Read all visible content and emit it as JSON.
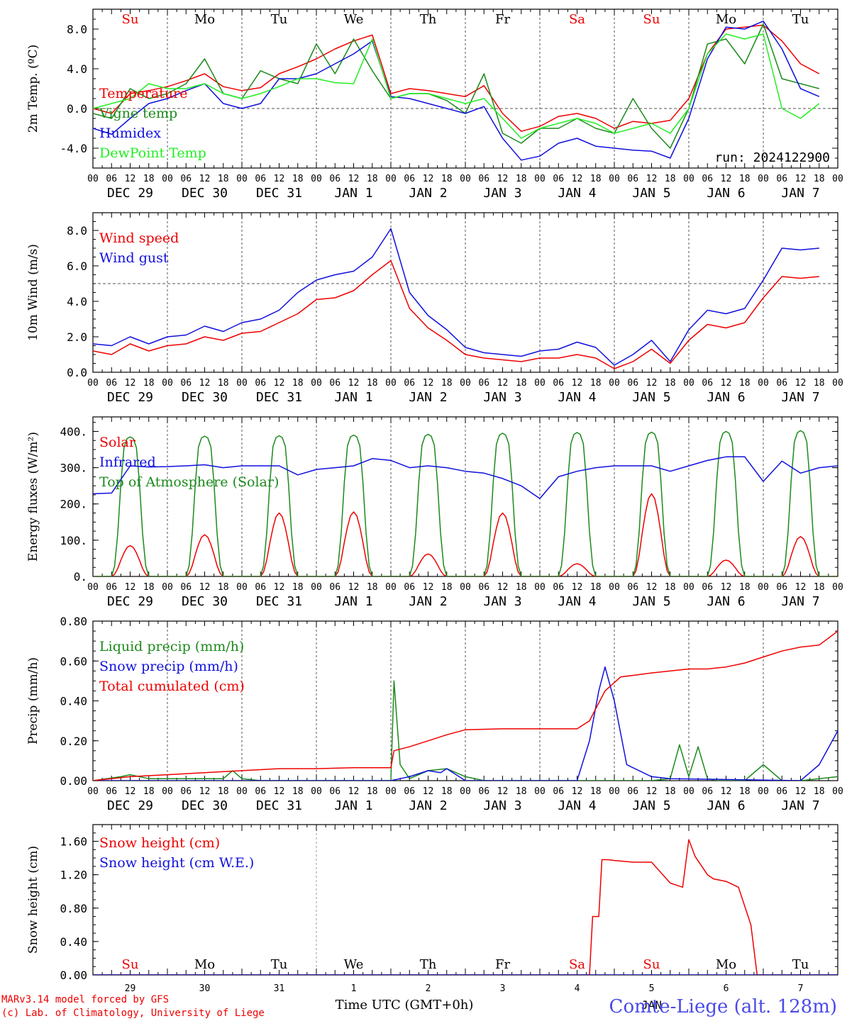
{
  "colors": {
    "red": "#ee0000",
    "green": "#1c8a1c",
    "blue": "#1010dd",
    "lightgreen": "#22ee22",
    "weekend": "#ee0000"
  },
  "run_label": "run: 2024122900",
  "hour_ticks": [
    "00",
    "06",
    "12",
    "18"
  ],
  "end_tick": "00",
  "dates": [
    "DEC 29",
    "DEC 30",
    "DEC 31",
    "JAN  1",
    "JAN  2",
    "JAN  3",
    "JAN  4",
    "JAN  5",
    "JAN  6",
    "JAN  7"
  ],
  "weekdays": [
    {
      "label": "Su",
      "weekend": true
    },
    {
      "label": "Mo",
      "weekend": false
    },
    {
      "label": "Tu",
      "weekend": false
    },
    {
      "label": "We",
      "weekend": false
    },
    {
      "label": "Th",
      "weekend": false
    },
    {
      "label": "Fr",
      "weekend": false
    },
    {
      "label": "Sa",
      "weekend": true
    },
    {
      "label": "Su",
      "weekend": true
    },
    {
      "label": "Mo",
      "weekend": false
    },
    {
      "label": "Tu",
      "weekend": false
    }
  ],
  "day_numbers": [
    "29",
    "30",
    "31",
    "1",
    "2",
    "3",
    "4",
    "5",
    "6",
    "7"
  ],
  "month_label": "JAN",
  "xaxis_title": "Time UTC (GMT+0h)",
  "station_label": "Comte-Liege (alt. 128m)",
  "credit_line1": "MARv3.14 model forced by GFS",
  "credit_line2": "(c) Lab. of Climatology, University of Liege",
  "chart_data": [
    {
      "type": "line",
      "ylabel": "2m Temp. (ºC)",
      "ylim": [
        -6,
        10
      ],
      "yticks": [
        {
          "v": -4,
          "label": "-4.0"
        },
        {
          "v": 0,
          "label": "0.0"
        },
        {
          "v": 4,
          "label": "4.0"
        },
        {
          "v": 8,
          "label": "8.0"
        }
      ],
      "refline": 0,
      "x_hours": [
        0,
        6,
        12,
        18,
        24,
        30,
        36,
        42,
        48,
        54,
        60,
        66,
        72,
        78,
        84,
        90,
        96,
        102,
        108,
        114,
        120,
        126,
        132,
        138,
        144,
        150,
        156,
        162,
        168,
        174,
        180,
        186,
        192,
        198,
        204,
        210,
        216,
        222,
        228,
        234
      ],
      "series": [
        {
          "name": "Temperature",
          "color": "red",
          "values": [
            0,
            -0.5,
            1.5,
            1.8,
            2.2,
            2.8,
            3.5,
            2.2,
            1.8,
            2.1,
            3.5,
            4.2,
            5.0,
            6.0,
            6.8,
            7.4,
            1.5,
            2.0,
            1.8,
            1.5,
            1.2,
            2.3,
            -0.5,
            -2.3,
            -1.8,
            -0.8,
            -0.5,
            -1.0,
            -2.0,
            -1.3,
            -1.5,
            -1.2,
            1.0,
            5.5,
            8.0,
            8.2,
            8.4,
            6.8,
            4.5,
            3.5
          ]
        },
        {
          "name": "Vigne temp",
          "color": "green",
          "values": [
            -0.5,
            -1.0,
            2.0,
            1.0,
            1.5,
            2.5,
            5.0,
            1.5,
            1.0,
            3.8,
            3.0,
            2.5,
            6.5,
            3.5,
            7.0,
            3.8,
            1.0,
            1.5,
            1.5,
            0.8,
            -0.5,
            3.5,
            -2.5,
            -3.5,
            -2.0,
            -2.0,
            -1.0,
            -2.0,
            -2.5,
            1.0,
            -2.0,
            -4.0,
            0.0,
            6.5,
            7.0,
            4.5,
            8.5,
            3.0,
            2.5,
            2.0
          ]
        },
        {
          "name": "Humidex",
          "color": "blue",
          "values": [
            -2.0,
            -2.6,
            -1.0,
            0.5,
            1.0,
            1.8,
            2.5,
            0.5,
            0.0,
            0.5,
            3.0,
            3.0,
            3.5,
            4.5,
            5.5,
            6.8,
            1.2,
            1.0,
            0.5,
            0.0,
            -0.5,
            0.2,
            -3.0,
            -5.2,
            -4.8,
            -3.5,
            -3.0,
            -3.8,
            -4.0,
            -4.2,
            -4.3,
            -5.0,
            -1.0,
            5.0,
            8.2,
            8.0,
            8.8,
            6.0,
            2.0,
            1.2
          ]
        },
        {
          "name": "DewPoint Temp",
          "color": "lightgreen",
          "values": [
            0,
            0.5,
            1.0,
            2.5,
            2.0,
            2.0,
            2.5,
            1.5,
            1.0,
            1.5,
            2.2,
            3.0,
            3.0,
            2.6,
            2.5,
            7.0,
            1.0,
            1.5,
            1.5,
            1.0,
            0.5,
            1.0,
            -1.0,
            -3.0,
            -2.0,
            -1.5,
            -1.0,
            -1.5,
            -2.5,
            -2.0,
            -1.5,
            -2.5,
            0.0,
            5.5,
            7.5,
            7.0,
            7.5,
            0.0,
            -1.0,
            0.5
          ]
        }
      ],
      "legend": [
        "Temperature",
        "Vigne temp",
        "Humidex",
        "DewPoint Temp"
      ],
      "legend_placement": "left"
    },
    {
      "type": "line",
      "ylabel": "10m Wind (m/s)",
      "ylim": [
        0,
        9
      ],
      "yticks": [
        {
          "v": 0,
          "label": "0.0"
        },
        {
          "v": 2,
          "label": "2.0"
        },
        {
          "v": 4,
          "label": "4.0"
        },
        {
          "v": 6,
          "label": "6.0"
        },
        {
          "v": 8,
          "label": "8.0"
        }
      ],
      "refline": 5,
      "x_hours": [
        0,
        6,
        12,
        18,
        24,
        30,
        36,
        42,
        48,
        54,
        60,
        66,
        72,
        78,
        84,
        90,
        96,
        102,
        108,
        114,
        120,
        126,
        132,
        138,
        144,
        150,
        156,
        162,
        168,
        174,
        180,
        186,
        192,
        198,
        204,
        210,
        216,
        222,
        228,
        234
      ],
      "series": [
        {
          "name": "Wind speed",
          "color": "red",
          "values": [
            1.2,
            1.0,
            1.6,
            1.2,
            1.5,
            1.6,
            2.0,
            1.8,
            2.2,
            2.3,
            2.8,
            3.3,
            4.1,
            4.2,
            4.6,
            5.5,
            6.3,
            3.6,
            2.5,
            1.8,
            1.0,
            0.8,
            0.7,
            0.6,
            0.8,
            0.8,
            1.0,
            0.8,
            0.2,
            0.6,
            1.3,
            0.5,
            1.8,
            2.7,
            2.5,
            2.8,
            4.2,
            5.4,
            5.3,
            5.4
          ]
        },
        {
          "name": "Wind gust",
          "color": "blue",
          "values": [
            1.6,
            1.5,
            2.0,
            1.6,
            2.0,
            2.1,
            2.6,
            2.3,
            2.8,
            3.0,
            3.5,
            4.5,
            5.2,
            5.5,
            5.7,
            6.5,
            8.1,
            4.5,
            3.2,
            2.4,
            1.4,
            1.1,
            1.0,
            0.9,
            1.2,
            1.3,
            1.7,
            1.4,
            0.4,
            1.0,
            1.8,
            0.6,
            2.4,
            3.5,
            3.3,
            3.6,
            5.2,
            7.0,
            6.9,
            7.0
          ]
        }
      ],
      "legend": [
        "Wind speed",
        "Wind gust"
      ],
      "legend_placement": "left"
    },
    {
      "type": "line",
      "ylabel": "Energy fluxes (W/m²)",
      "ylim": [
        0,
        440
      ],
      "yticks": [
        {
          "v": 0,
          "label": "0."
        },
        {
          "v": 100,
          "label": "100."
        },
        {
          "v": 200,
          "label": "200."
        },
        {
          "v": 300,
          "label": "300."
        },
        {
          "v": 400,
          "label": "400."
        }
      ],
      "refline": null,
      "x_hours": [
        0,
        3,
        6,
        7,
        8,
        9,
        10,
        11,
        12,
        13,
        14,
        15,
        16,
        17,
        18,
        21
      ],
      "solar_peaks": [
        85,
        115,
        175,
        178,
        62,
        175,
        35,
        228,
        45,
        110
      ],
      "toa_peaks": [
        385,
        387,
        388,
        390,
        392,
        395,
        397,
        398,
        400,
        402
      ],
      "series": [
        {
          "name": "Solar",
          "color": "red",
          "shape": [
            0,
            0,
            0,
            6,
            22,
            45,
            65,
            80,
            85,
            80,
            65,
            45,
            22,
            6,
            0,
            0
          ]
        },
        {
          "name": "Top of Atmosphere (Solar)",
          "color": "green",
          "shape": [
            0,
            0,
            0,
            30,
            120,
            260,
            360,
            385,
            390,
            385,
            360,
            260,
            120,
            30,
            0,
            0
          ]
        },
        {
          "name": "Infrared",
          "color": "blue",
          "x_hours": [
            0,
            6,
            12,
            18,
            24,
            30,
            36,
            42,
            48,
            54,
            60,
            66,
            72,
            78,
            84,
            90,
            96,
            102,
            108,
            114,
            120,
            126,
            132,
            138,
            144,
            150,
            156,
            162,
            168,
            174,
            180,
            186,
            192,
            198,
            204,
            210,
            216,
            222,
            228,
            234,
            240
          ],
          "values": [
            228,
            230,
            305,
            302,
            303,
            305,
            308,
            300,
            305,
            305,
            305,
            280,
            295,
            300,
            305,
            325,
            320,
            300,
            305,
            300,
            290,
            285,
            270,
            250,
            215,
            275,
            290,
            300,
            305,
            305,
            305,
            290,
            305,
            320,
            330,
            330,
            262,
            318,
            285,
            300,
            305
          ]
        }
      ],
      "legend": [
        "Solar",
        "Infrared",
        "Top of Atmosphere (Solar)"
      ],
      "legend_placement": "left"
    },
    {
      "type": "line",
      "ylabel": "Precip (mm/h)",
      "ylim": [
        0,
        0.8
      ],
      "yticks": [
        {
          "v": 0,
          "label": "0.00"
        },
        {
          "v": 0.2,
          "label": "0.20"
        },
        {
          "v": 0.4,
          "label": "0.40"
        },
        {
          "v": 0.6,
          "label": "0.60"
        },
        {
          "v": 0.8,
          "label": "0.80"
        }
      ],
      "refline": null,
      "series": [
        {
          "name": "Liquid precip (mm/h)",
          "color": "green",
          "x_hours": [
            0,
            9,
            12,
            18,
            42,
            45,
            48,
            54,
            96,
            97,
            99,
            102,
            108,
            114,
            120,
            126,
            132,
            180,
            186,
            189,
            192,
            195,
            198,
            201,
            204,
            210,
            216,
            222,
            228,
            234,
            240
          ],
          "values": [
            0,
            0.02,
            0.03,
            0.01,
            0.01,
            0.05,
            0.01,
            0,
            0,
            0.5,
            0.08,
            0.01,
            0.05,
            0.06,
            0.02,
            0,
            0,
            0,
            0.01,
            0.18,
            0.02,
            0.17,
            0.01,
            0,
            0,
            0,
            0.08,
            0,
            0,
            0.01,
            0.02
          ]
        },
        {
          "name": "Snow precip (mm/h)",
          "color": "blue",
          "x_hours": [
            0,
            96,
            99,
            102,
            108,
            112,
            114,
            118,
            120,
            156,
            160,
            163,
            165,
            168,
            172,
            180,
            186,
            228,
            234,
            240
          ],
          "values": [
            0,
            0,
            0.01,
            0.02,
            0.05,
            0.04,
            0.06,
            0.02,
            0,
            0,
            0.2,
            0.45,
            0.57,
            0.4,
            0.08,
            0.02,
            0.01,
            0,
            0.08,
            0.25
          ]
        },
        {
          "name": "Total cumulated (cm)",
          "color": "red",
          "x_hours": [
            0,
            12,
            24,
            36,
            48,
            60,
            72,
            84,
            96,
            97,
            102,
            108,
            114,
            120,
            132,
            144,
            156,
            160,
            165,
            170,
            180,
            192,
            198,
            204,
            210,
            216,
            222,
            228,
            234,
            240
          ],
          "values": [
            0,
            0.02,
            0.03,
            0.04,
            0.05,
            0.06,
            0.06,
            0.065,
            0.065,
            0.15,
            0.17,
            0.2,
            0.23,
            0.255,
            0.26,
            0.26,
            0.26,
            0.3,
            0.45,
            0.52,
            0.54,
            0.56,
            0.56,
            0.57,
            0.59,
            0.62,
            0.65,
            0.67,
            0.68,
            0.75
          ]
        }
      ],
      "legend": [
        "Liquid precip (mm/h)",
        "Snow precip (mm/h)",
        "Total cumulated (cm)"
      ],
      "legend_placement": "left"
    },
    {
      "type": "line",
      "ylabel": "Snow height (cm)",
      "ylim": [
        0,
        1.8
      ],
      "yticks": [
        {
          "v": 0,
          "label": "0.00"
        },
        {
          "v": 0.4,
          "label": "0.40"
        },
        {
          "v": 0.8,
          "label": "0.80"
        },
        {
          "v": 1.2,
          "label": "1.20"
        },
        {
          "v": 1.6,
          "label": "1.60"
        }
      ],
      "refline": null,
      "series": [
        {
          "name": "Snow height (cm)",
          "color": "red",
          "x_hours": [
            0,
            160,
            161,
            163,
            164,
            166,
            168,
            174,
            180,
            186,
            190,
            192,
            194,
            198,
            200,
            204,
            208,
            212,
            214,
            240
          ],
          "values": [
            0,
            0,
            0.7,
            0.7,
            1.38,
            1.38,
            1.37,
            1.35,
            1.35,
            1.1,
            1.05,
            1.62,
            1.42,
            1.2,
            1.15,
            1.12,
            1.05,
            0.6,
            0,
            0
          ]
        },
        {
          "name": "Snow height (cm W.E.)",
          "color": "blue",
          "x_hours": [
            0,
            240
          ],
          "values": [
            0,
            0
          ]
        }
      ],
      "legend": [
        "Snow height (cm)",
        "Snow height (cm W.E.)"
      ],
      "legend_placement": "left"
    }
  ]
}
